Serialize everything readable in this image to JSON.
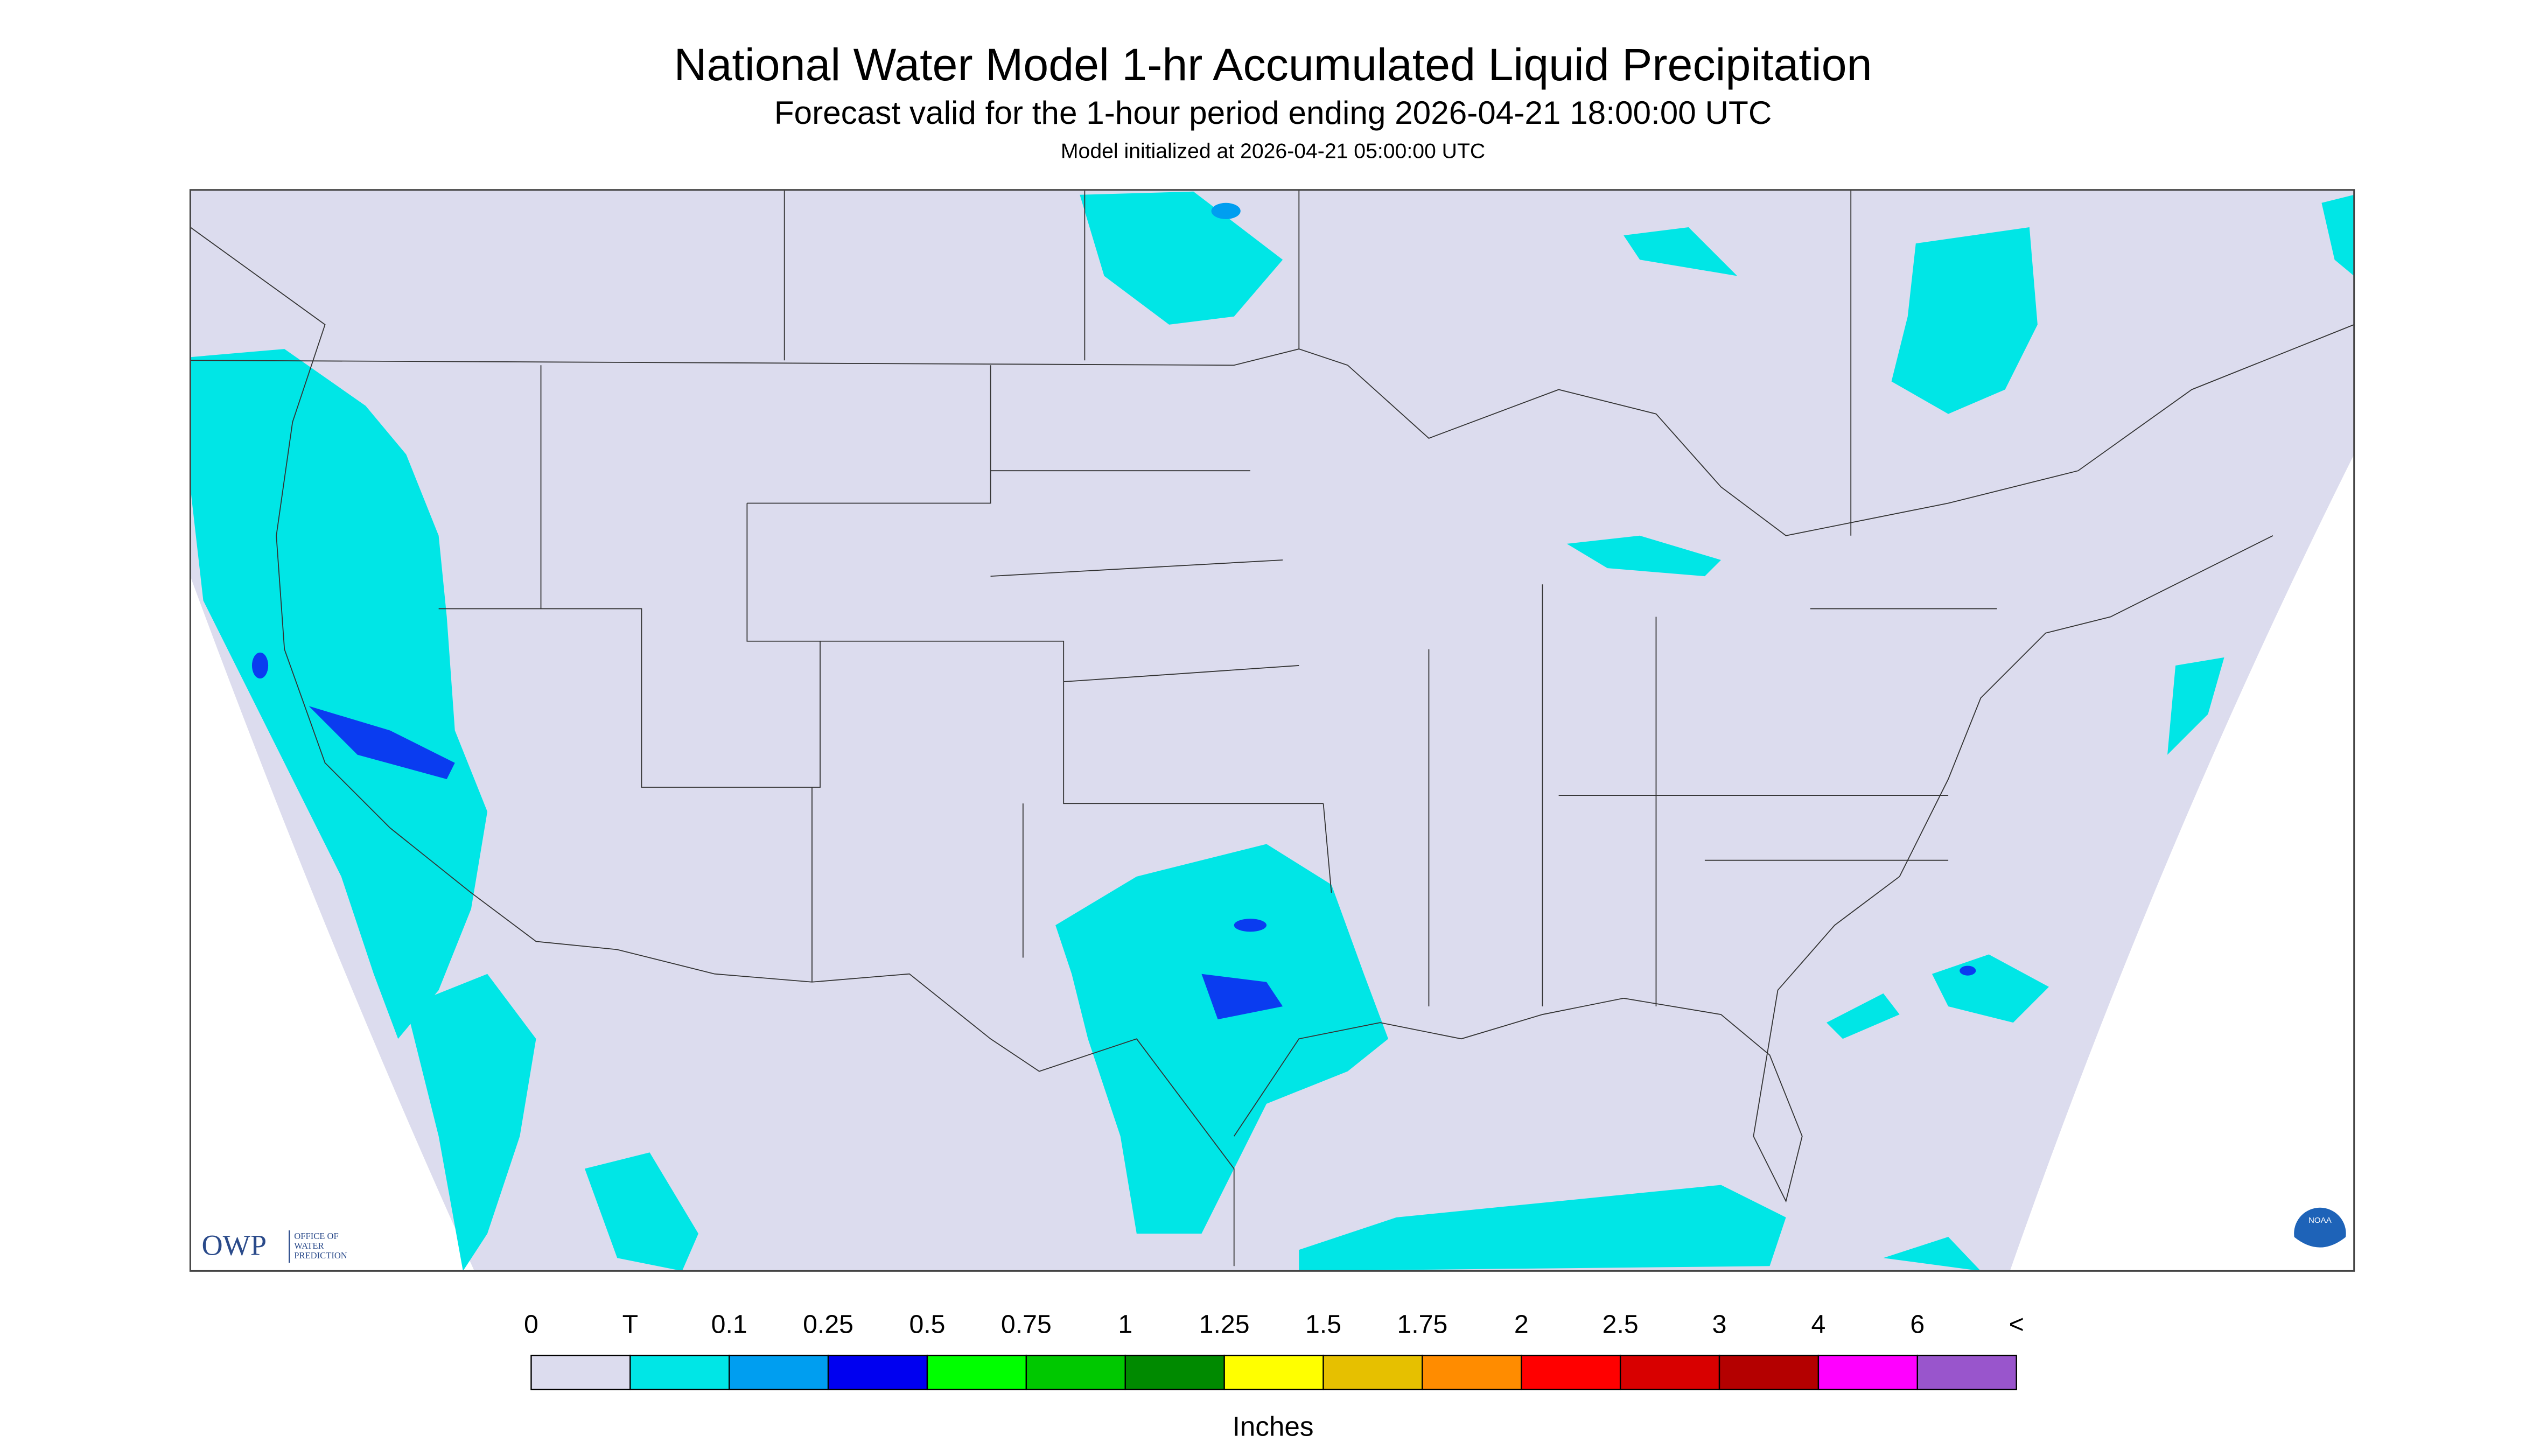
{
  "header": {
    "title": "National Water Model 1-hr Accumulated Liquid Precipitation",
    "subtitle": "Forecast valid for the 1-hour period ending 2026-04-21 18:00:00 UTC",
    "init": "Model initialized at 2026-04-21 05:00:00 UTC"
  },
  "logos": {
    "owp": "OWP",
    "owp_name": [
      "OFFICE OF",
      "WATER",
      "PREDICTION"
    ],
    "noaa": "NOAA"
  },
  "legend": {
    "labels": [
      "0",
      "T",
      "0.1",
      "0.25",
      "0.5",
      "0.75",
      "1",
      "1.25",
      "1.5",
      "1.75",
      "2",
      "2.5",
      "3",
      "4",
      "6",
      "<"
    ],
    "colors": [
      "#dcdcee",
      "#00e6e6",
      "#009ef0",
      "#0000f0",
      "#00ff00",
      "#00c800",
      "#008a00",
      "#ffff00",
      "#e6c000",
      "#ff8c00",
      "#ff0000",
      "#d80000",
      "#b40000",
      "#ff00ff",
      "#9955cc"
    ],
    "unit": "Inches"
  }
}
